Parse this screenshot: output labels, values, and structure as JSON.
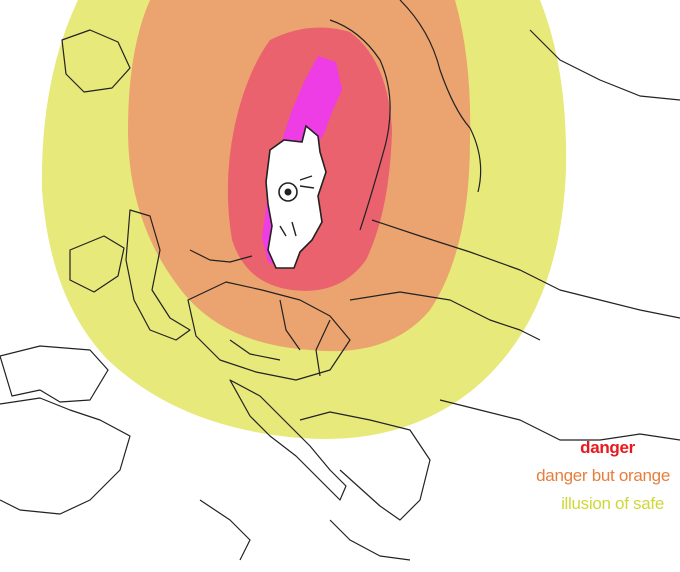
{
  "map": {
    "zones": [
      {
        "id": "danger",
        "color": "#ea5f6e"
      },
      {
        "id": "danger-but-orange",
        "color": "#eba070"
      },
      {
        "id": "illusion-of-safe",
        "color": "#e6e873"
      }
    ],
    "highlight_color": "#ef3de5",
    "outline_color": "#222222"
  },
  "legend": {
    "danger": "danger",
    "danger_but_orange": "danger but orange",
    "illusion_of_safe": "illusion of safe"
  }
}
